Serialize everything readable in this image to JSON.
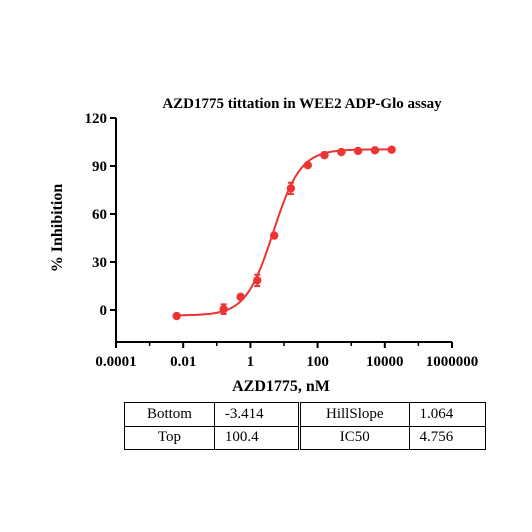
{
  "chart_data": {
    "type": "scatter",
    "title": "AZD1775 tittation in WEE2 ADP-Glo assay",
    "xlabel": "AZD1775, nM",
    "ylabel": "% Inhibition",
    "xscale": "log",
    "xlim": [
      0.0001,
      1000000
    ],
    "ylim": [
      -20,
      120
    ],
    "x_ticks": [
      0.0001,
      0.01,
      1,
      100,
      10000,
      1000000
    ],
    "x_tick_labels": [
      "0.0001",
      "0.01",
      "1",
      "100",
      "10000",
      "1000000"
    ],
    "y_ticks": [
      0,
      30,
      60,
      90,
      120
    ],
    "y_tick_labels": [
      "0",
      "30",
      "60",
      "90",
      "120"
    ],
    "grid": false,
    "point_color": "#ee3333",
    "curve_color": "#ee3333",
    "series": [
      {
        "x": [
          0.0064,
          0.16,
          0.51,
          1.6,
          5.1,
          16,
          51,
          160,
          510,
          1600,
          5100,
          16000
        ],
        "y": [
          -3.8,
          0.5,
          8.2,
          18.5,
          46.5,
          76.0,
          90.5,
          96.8,
          98.7,
          99.4,
          99.8,
          100.2
        ],
        "err": [
          0,
          3,
          0,
          3.5,
          0,
          3.5,
          0,
          0,
          0,
          0,
          0,
          0
        ]
      }
    ],
    "fit": {
      "bottom": -3.414,
      "top": 100.4,
      "hillslope": 1.064,
      "ic50": 4.756
    }
  },
  "params_table": {
    "row1": {
      "label1": "Bottom",
      "value1": "-3.414",
      "label2": "HillSlope",
      "value2": "1.064"
    },
    "row2": {
      "label1": "Top",
      "value1": "100.4",
      "label2": "IC50",
      "value2": "4.756"
    }
  }
}
